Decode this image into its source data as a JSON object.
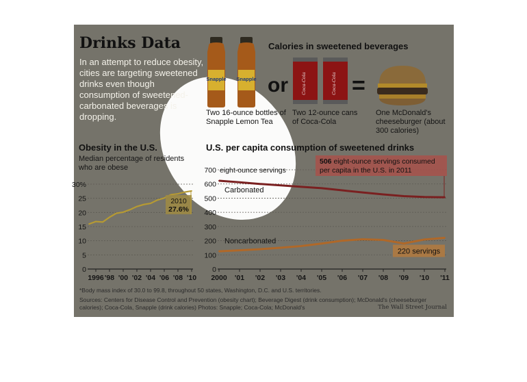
{
  "header": {
    "title": "Drinks Data",
    "intro": "In an attempt to reduce obesity, cities are targeting sweetened drinks even though consumption of sweetened-carbonated beverages is dropping."
  },
  "calories": {
    "title": "Calories in sweetened beverages",
    "or_text": "or",
    "equals_text": "=",
    "snapple_caption": "Two 16-ounce bottles of Snapple Lemon Tea",
    "coke_caption": "Two 12-ounce cans of Coca-Cola",
    "burger_caption": "One McDonald's cheeseburger (about 300 calories)",
    "bottle_label": "Snapple",
    "can_label": "Coca-Cola"
  },
  "obesity": {
    "title": "Obesity in the U.S.",
    "subtitle": "Median percentage of residents who are obese",
    "annotation_year": "2010",
    "annotation_value": "27.6%"
  },
  "consumption": {
    "title": "U.S. per capita consumption of sweetened drinks",
    "axis_note": "eight-ounce servings",
    "callout_bold": "506",
    "callout_text": "eight-ounce servings consumed per capita in the U.S. in 2011",
    "carbonated_label": "Carbonated",
    "noncarbonated_label": "Noncarbonated",
    "end_label": "220 servings"
  },
  "footer": {
    "footnote": "*Body mass index of 30.0 to 99.8, throughout 50 states, Washington, D.C. and U.S. territories.",
    "sources": "Sources: Centers for Disease Control and Prevention (obesity chart); Beverage Digest (drink consumption); McDonald's (cheeseburger calories); Coca-Cola, Snapple (drink calories)        Photos: Snapple; Coca-Cola; McDonald's",
    "credit": "The Wall Street Journal"
  },
  "colors": {
    "panel": "#75736a",
    "obesity_line": "#b69a33",
    "carbonated_line": "#7a2020",
    "noncarbonated_line": "#b06828",
    "annotation_box": "#9d8a45",
    "callout_box": "#a8514a",
    "end_box": "#b07a40"
  },
  "chart_data": [
    {
      "type": "line",
      "title": "Obesity in the U.S.",
      "subtitle": "Median percentage of residents who are obese",
      "x": [
        1995,
        1996,
        1997,
        1998,
        1999,
        2000,
        2001,
        2002,
        2003,
        2004,
        2005,
        2006,
        2007,
        2008,
        2009,
        2010
      ],
      "series": [
        {
          "values": [
            15.9,
            16.8,
            16.6,
            18.3,
            19.7,
            20.1,
            21.0,
            22.1,
            22.8,
            23.2,
            24.4,
            25.1,
            26.3,
            26.6,
            27.2,
            27.6
          ]
        }
      ],
      "ylim": [
        0,
        30
      ],
      "yticks": [
        "0",
        "5",
        "10",
        "15",
        "20",
        "25",
        "30%"
      ],
      "xticks": [
        "1996",
        "'98",
        "'00",
        "'02",
        "'04",
        "'06",
        "'08",
        "'10"
      ],
      "annotation": {
        "x": 2010,
        "label": "2010",
        "value": "27.6%"
      }
    },
    {
      "type": "line",
      "title": "U.S. per capita consumption of sweetened drinks",
      "ylabel": "eight-ounce servings",
      "x": [
        2000,
        2001,
        2002,
        2003,
        2004,
        2005,
        2006,
        2007,
        2008,
        2009,
        2010,
        2011
      ],
      "series": [
        {
          "name": "Carbonated",
          "values": [
            623,
            612,
            600,
            590,
            580,
            570,
            555,
            540,
            526,
            514,
            508,
            506
          ]
        },
        {
          "name": "Noncarbonated",
          "values": [
            125,
            132,
            140,
            150,
            162,
            180,
            200,
            210,
            205,
            180,
            208,
            220
          ]
        }
      ],
      "ylim": [
        0,
        700
      ],
      "yticks": [
        "0",
        "100",
        "200",
        "300",
        "400",
        "500",
        "600",
        "700"
      ],
      "xticks": [
        "2000",
        "'01",
        "'02",
        "'03",
        "'04",
        "'05",
        "'06",
        "'07",
        "'08",
        "'09",
        "'10",
        "'11"
      ]
    }
  ]
}
